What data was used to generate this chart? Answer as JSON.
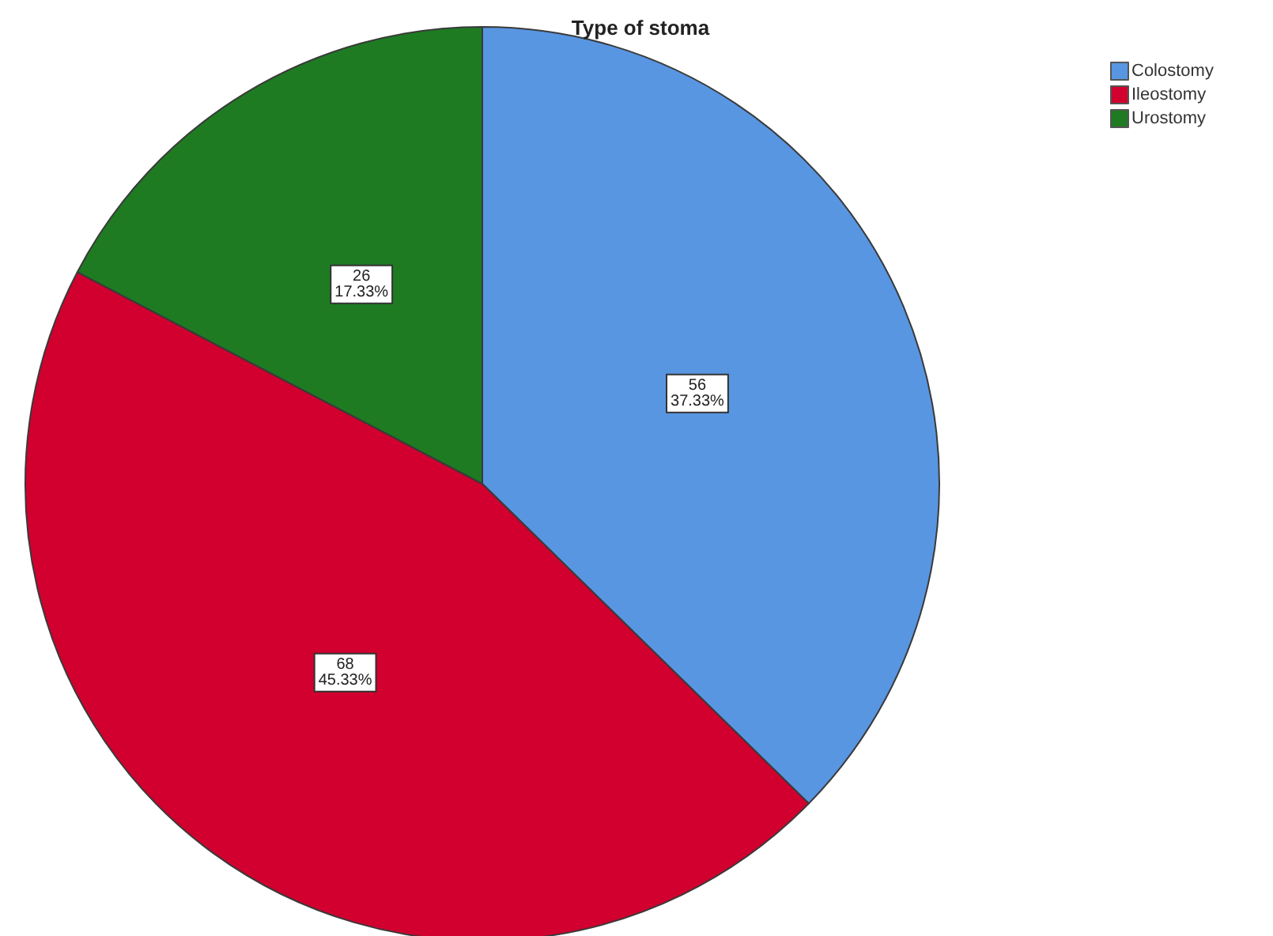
{
  "chart_data": {
    "type": "pie",
    "title": "Type of stoma",
    "categories": [
      "Colostomy",
      "Ileostomy",
      "Urostomy"
    ],
    "values": [
      56,
      68,
      26
    ],
    "colors": [
      "#5896e2",
      "#d1002e",
      "#1e7b22"
    ],
    "value_labels": [
      "56\n37.33%",
      "68\n45.33%",
      "26\n17.33%"
    ],
    "legend": "top right"
  }
}
